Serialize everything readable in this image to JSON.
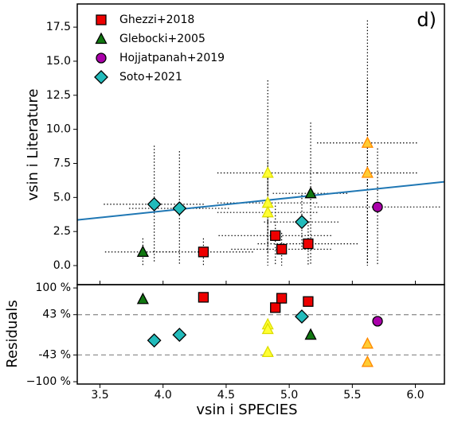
{
  "chart_data": {
    "type": "scatter",
    "annotation": "d)",
    "xlabel": "vsin i SPECIES",
    "ylabel": "vsin i Literature",
    "residual_ylabel": "Residuals",
    "xlim": [
      3.32,
      6.23
    ],
    "xticks": [
      3.5,
      {
        "value": 4.0,
        "label": "4.0"
      },
      4.5,
      {
        "value": 5.0,
        "label": "5.0"
      },
      5.5,
      {
        "value": 6.0,
        "label": "6.0"
      }
    ],
    "ylim": [
      -1.4,
      19.2
    ],
    "yticks": [
      {
        "value": 0,
        "label": "0.0"
      },
      2.5,
      {
        "value": 5,
        "label": "5.0"
      },
      7.5,
      {
        "value": 10,
        "label": "10.0"
      },
      12.5,
      {
        "value": 15,
        "label": "15.0"
      },
      17.5
    ],
    "residual_ylim": [
      -105,
      107
    ],
    "residual_yticks": [
      {
        "value": 100,
        "label": "100 %"
      },
      {
        "value": 43,
        "label": "43 %"
      },
      {
        "value": -43,
        "label": "-43 %"
      },
      {
        "value": -100,
        "label": "−100 %"
      }
    ],
    "residual_reference_lines": [
      43,
      -43
    ],
    "legend": "upper left",
    "fit": {
      "x": [
        3.32,
        6.23
      ],
      "y": [
        3.35,
        6.15
      ],
      "color": "#1f77b4"
    },
    "series": [
      {
        "name": "Ghezzi+2018",
        "marker": "square",
        "color": "#ee0000",
        "x": [
          4.32,
          4.89,
          4.94,
          5.15
        ],
        "values": [
          1.0,
          2.2,
          1.2,
          1.6
        ],
        "xerr": [
          0.4,
          0.45,
          0.4,
          0.4
        ],
        "yerr": [
          1.0,
          2.2,
          1.2,
          1.6
        ],
        "residuals": [
          80,
          58,
          78,
          71
        ]
      },
      {
        "name": "Glebocki+2005",
        "marker": "triangle",
        "color": "#117711",
        "point_colors": [
          "#117711",
          "#ffff33",
          "#ffff33",
          "#ffff33",
          "#117711",
          "#ffcc33",
          "#ffcc33"
        ],
        "point_edges": [
          "#000000",
          "#dddd00",
          "#dddd00",
          "#dddd00",
          "#000000",
          "#ff8800",
          "#ff8800"
        ],
        "x": [
          3.84,
          4.83,
          4.83,
          4.83,
          5.17,
          5.62,
          5.62
        ],
        "values": [
          1.0,
          6.8,
          4.6,
          3.9,
          5.3,
          9.0,
          6.8
        ],
        "xerr": [
          0.3,
          0.4,
          0.4,
          0.4,
          0.3,
          0.4,
          0.4
        ],
        "yerr": [
          1.0,
          6.8,
          3.0,
          3.0,
          5.2,
          9.0,
          6.8
        ],
        "residuals": [
          76,
          22,
          12,
          -37,
          0,
          -19,
          -58
        ]
      },
      {
        "name": "Hojjatpanah+2019",
        "marker": "circle",
        "color": "#aa00aa",
        "x": [
          5.7
        ],
        "values": [
          4.3
        ],
        "xerr": [
          0.5
        ],
        "yerr": [
          4.3
        ],
        "residuals": [
          29
        ]
      },
      {
        "name": "Soto+2021",
        "marker": "diamond",
        "color": "#22bbbb",
        "x": [
          3.93,
          4.13,
          5.1
        ],
        "values": [
          4.5,
          4.2,
          3.2
        ],
        "xerr": [
          0.4,
          0.4,
          0.3
        ],
        "yerr": [
          4.3,
          4.2,
          2.0
        ],
        "residuals": [
          -12,
          0,
          39
        ]
      }
    ]
  }
}
